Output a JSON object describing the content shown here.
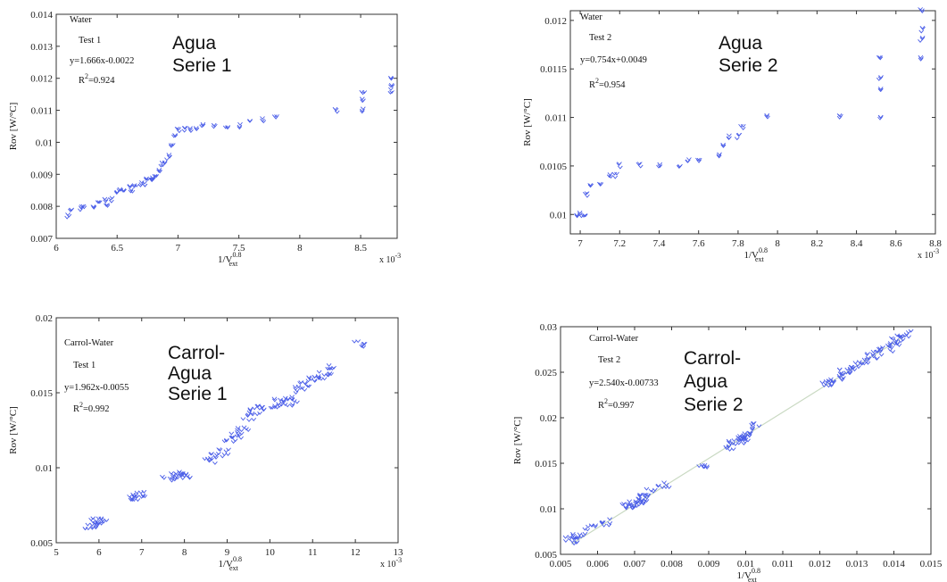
{
  "chart_data": [
    {
      "type": "scatter",
      "box": [
        0,
        0,
        0,
        0
      ],
      "xlim": [
        6,
        8.8
      ],
      "ylim": [
        0.007,
        0.014
      ],
      "xticks": [
        6,
        6.5,
        7,
        7.5,
        8,
        8.5
      ],
      "yticks": [
        0.007,
        0.008,
        0.009,
        0.01,
        0.011,
        0.012,
        0.013,
        0.014
      ],
      "xtick_labels": [
        "6",
        "6.5",
        "7",
        "7.5",
        "8",
        "8.5"
      ],
      "ytick_labels": [
        "0.007",
        "0.008",
        "0.009",
        "0.01",
        "0.011",
        "0.012",
        "0.013",
        "0.014"
      ],
      "x_exponent": "x 10",
      "x_exponent_power": "-3",
      "ylabel": "Rov [W/°C]",
      "xlabel": "1/V",
      "xlabel_sup": "0.8",
      "xlabel_sub": "ext",
      "annotations": [
        "Water",
        "Test 1",
        "y=1.666x-0.0022",
        "R",
        "2",
        "=0.924"
      ],
      "big_label": [
        "Agua",
        "Serie 1"
      ],
      "fit": {
        "slope": 1.666,
        "intercept": -0.0022,
        "x": [
          6.1,
          8.75
        ]
      },
      "series": [
        {
          "x": [
            6.1,
            6.12,
            6.2,
            6.22,
            6.3,
            6.35,
            6.4,
            6.42,
            6.45,
            6.5,
            6.52,
            6.55,
            6.6,
            6.62,
            6.65,
            6.7,
            6.72,
            6.75,
            6.78,
            6.8,
            6.82,
            6.85,
            6.87,
            6.9,
            6.92,
            6.95,
            6.97,
            7.0,
            7.05,
            7.1,
            7.15,
            7.2,
            7.3,
            7.4,
            7.5,
            7.6,
            7.7,
            7.8,
            8.3,
            8.52,
            8.52,
            8.52,
            8.75,
            8.75,
            8.75
          ],
          "y": [
            0.0077,
            0.0079,
            0.0079,
            0.008,
            0.008,
            0.0081,
            0.0082,
            0.008,
            0.0082,
            0.0084,
            0.0085,
            0.0085,
            0.0086,
            0.0085,
            0.0086,
            0.0087,
            0.0087,
            0.0088,
            0.0088,
            0.0089,
            0.009,
            0.0091,
            0.0093,
            0.0094,
            0.0096,
            0.0099,
            0.0102,
            0.0104,
            0.0104,
            0.0104,
            0.0104,
            0.0105,
            0.0105,
            0.0105,
            0.0105,
            0.0106,
            0.0107,
            0.0108,
            0.011,
            0.011,
            0.0113,
            0.0115,
            0.0116,
            0.0118,
            0.012
          ]
        }
      ]
    },
    {
      "type": "scatter",
      "box": [
        0,
        0,
        0,
        0
      ],
      "xlim": [
        6.95,
        8.8
      ],
      "ylim": [
        0.0098,
        0.0121
      ],
      "xticks": [
        7,
        7.2,
        7.4,
        7.6,
        7.8,
        8,
        8.2,
        8.4,
        8.6,
        8.8
      ],
      "yticks": [
        0.01,
        0.0105,
        0.011,
        0.0115,
        0.012
      ],
      "xtick_labels": [
        "7",
        "7.2",
        "7.4",
        "7.6",
        "7.8",
        "8",
        "8.2",
        "8.4",
        "8.6",
        "8.8"
      ],
      "ytick_labels": [
        "0.01",
        "0.0105",
        "0.011",
        "0.0115",
        "0.012"
      ],
      "x_exponent": "x 10",
      "x_exponent_power": "-3",
      "ylabel": "Rov [W/°C]",
      "xlabel": "1/V",
      "xlabel_sup": "0.8",
      "xlabel_sub": "ext",
      "annotations": [
        "Water",
        "Test 2",
        "y=0.754x+0.0049",
        "R",
        "2",
        "=0.954"
      ],
      "big_label": [
        "Agua",
        "Serie 2"
      ],
      "fit": {
        "slope": 0.754,
        "intercept": 0.0049,
        "x": [
          6.98,
          8.75
        ]
      },
      "series": [
        {
          "x": [
            6.98,
            7.0,
            7.02,
            7.03,
            7.05,
            7.1,
            7.15,
            7.18,
            7.2,
            7.3,
            7.4,
            7.5,
            7.55,
            7.6,
            7.7,
            7.72,
            7.75,
            7.8,
            7.82,
            7.95,
            8.32,
            8.52,
            8.52,
            8.52,
            8.52,
            8.73,
            8.73,
            8.73,
            8.73
          ],
          "y": [
            0.01,
            0.01,
            0.01,
            0.0102,
            0.0103,
            0.0103,
            0.0104,
            0.0104,
            0.0105,
            0.0105,
            0.0105,
            0.0105,
            0.01055,
            0.01055,
            0.0106,
            0.0107,
            0.0108,
            0.0108,
            0.0109,
            0.011,
            0.011,
            0.011,
            0.0113,
            0.0114,
            0.0116,
            0.0116,
            0.0118,
            0.0119,
            0.0121
          ]
        }
      ]
    },
    {
      "type": "scatter",
      "box": [
        0,
        0,
        0,
        0
      ],
      "xlim": [
        5,
        13
      ],
      "ylim": [
        0.005,
        0.02
      ],
      "xticks": [
        5,
        6,
        7,
        8,
        9,
        10,
        11,
        12,
        13
      ],
      "yticks": [
        0.005,
        0.01,
        0.015,
        0.02
      ],
      "xtick_labels": [
        "5",
        "6",
        "7",
        "8",
        "9",
        "10",
        "11",
        "12",
        "13"
      ],
      "ytick_labels": [
        "0.005",
        "0.01",
        "0.015",
        "0.02"
      ],
      "x_exponent": "x 10",
      "x_exponent_power": "-3",
      "ylabel": "Rov [W/°C]",
      "xlabel": "1/V",
      "xlabel_sup": "0.8",
      "xlabel_sub": "ext",
      "annotations": [
        "Carrol-Water",
        "Test 1",
        "y=1.962x-0.0055",
        "R",
        "2",
        "=0.992"
      ],
      "big_label": [
        "Carrol-",
        "Agua",
        "Serie 1"
      ],
      "fit": {
        "slope": 1.962,
        "intercept": -0.0055,
        "x": [
          5.7,
          12.1
        ]
      },
      "series": [
        {
          "x": [
            5.75,
            5.85,
            5.95,
            6.05,
            6.8,
            6.9,
            7.0,
            7.6,
            7.75,
            7.9,
            8.05,
            8.6,
            8.75,
            8.9,
            9.05,
            9.2,
            9.35,
            9.5,
            9.65,
            9.8,
            10.1,
            10.25,
            10.4,
            10.55,
            10.7,
            10.85,
            11.0,
            11.15,
            11.3,
            11.5,
            12.1
          ],
          "y": [
            0.0061,
            0.0062,
            0.0064,
            0.0065,
            0.0079,
            0.008,
            0.0082,
            0.0093,
            0.0094,
            0.0095,
            0.0095,
            0.0105,
            0.0108,
            0.011,
            0.0118,
            0.0122,
            0.0125,
            0.0133,
            0.0137,
            0.014,
            0.0142,
            0.0145,
            0.0143,
            0.0145,
            0.0152,
            0.0155,
            0.0158,
            0.016,
            0.0163,
            0.0166,
            0.0182
          ]
        }
      ]
    },
    {
      "type": "scatter",
      "box": [
        0,
        0,
        0,
        0
      ],
      "xlim": [
        0.005,
        0.015
      ],
      "ylim": [
        0.005,
        0.03
      ],
      "xticks": [
        0.005,
        0.006,
        0.007,
        0.008,
        0.009,
        0.01,
        0.011,
        0.012,
        0.013,
        0.014,
        0.015
      ],
      "yticks": [
        0.005,
        0.01,
        0.015,
        0.02,
        0.025,
        0.03
      ],
      "xtick_labels": [
        "0.005",
        "0.006",
        "0.007",
        "0.008",
        "0.009",
        "0.01",
        "0.011",
        "0.012",
        "0.013",
        "0.014",
        "0.015"
      ],
      "ytick_labels": [
        "0.005",
        "0.01",
        "0.015",
        "0.02",
        "0.025",
        "0.03"
      ],
      "ylabel": "Rov [W/°C]",
      "xlabel": "1/V",
      "xlabel_sup": "0.8",
      "xlabel_sub": "ext",
      "annotations": [
        "Carrol-Water",
        "Test 2",
        "y=2.540x-0.00733",
        "R",
        "2",
        "=0.997"
      ],
      "big_label": [
        "Carrol-",
        "Agua",
        "Serie 2"
      ],
      "fit": {
        "slope": 2.54,
        "intercept": -0.00733,
        "x": [
          0.0053,
          0.0143
        ]
      },
      "series": [
        {
          "x": [
            0.0053,
            0.0054,
            0.0055,
            0.0058,
            0.0062,
            0.0068,
            0.0069,
            0.007,
            0.0071,
            0.0072,
            0.0073,
            0.0074,
            0.0078,
            0.0088,
            0.0096,
            0.0097,
            0.0098,
            0.0099,
            0.01,
            0.0101,
            0.0102,
            0.0122,
            0.0123,
            0.0125,
            0.0127,
            0.0128,
            0.013,
            0.0132,
            0.0134,
            0.0136,
            0.0138,
            0.014,
            0.0141,
            0.0142,
            0.0143
          ],
          "y": [
            0.0065,
            0.0068,
            0.007,
            0.0078,
            0.0085,
            0.0102,
            0.0103,
            0.0105,
            0.0108,
            0.011,
            0.0113,
            0.0118,
            0.0125,
            0.0148,
            0.0168,
            0.0172,
            0.0175,
            0.0176,
            0.018,
            0.0182,
            0.019,
            0.0238,
            0.024,
            0.0245,
            0.025,
            0.0252,
            0.0258,
            0.0262,
            0.0268,
            0.0272,
            0.0276,
            0.028,
            0.0285,
            0.0288,
            0.0292
          ]
        }
      ]
    }
  ]
}
